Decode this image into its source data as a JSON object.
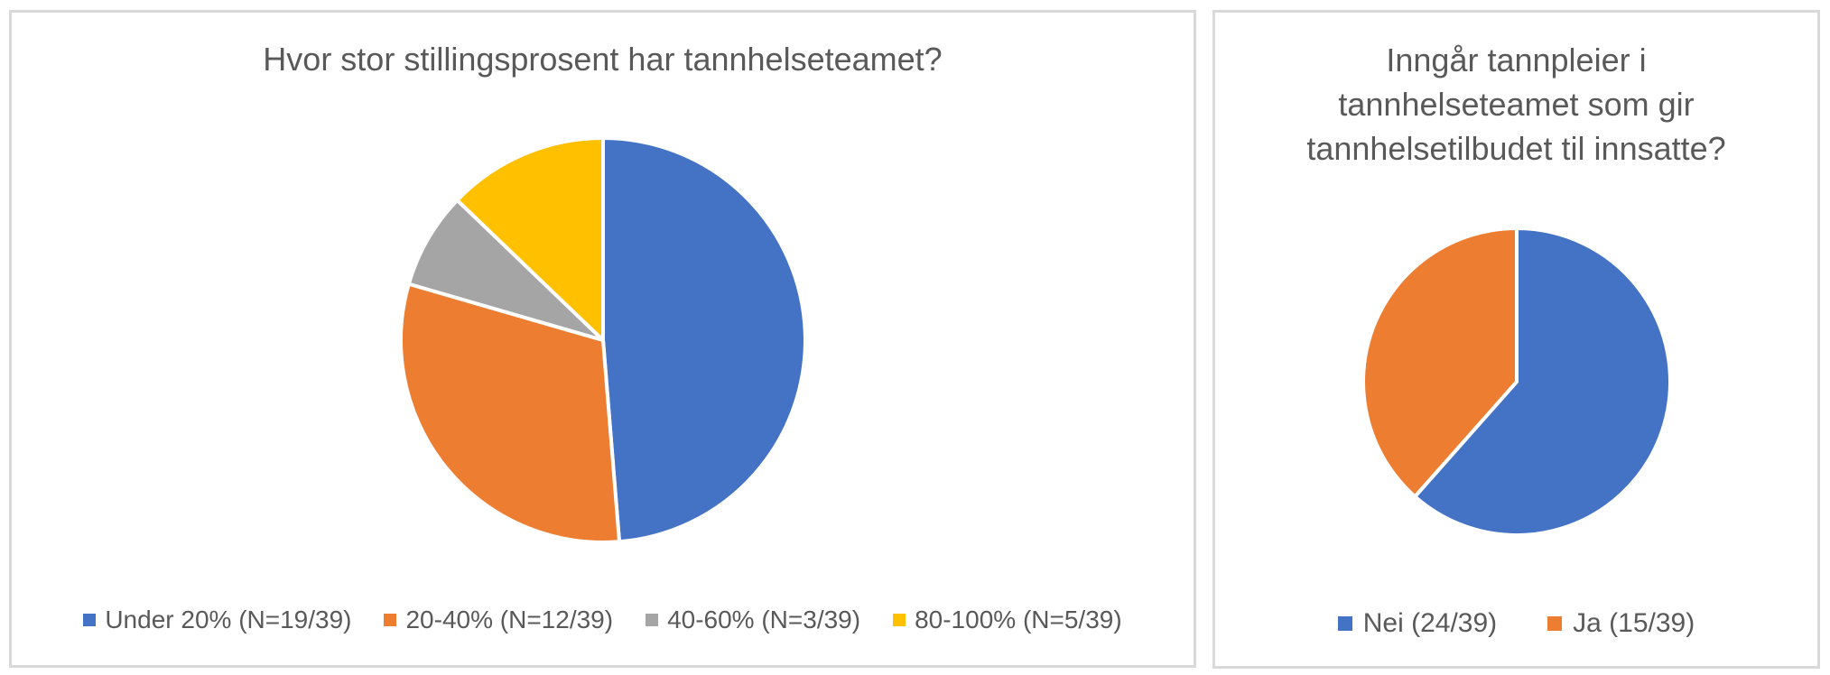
{
  "styles": {
    "background": "#FFFFFF",
    "panel_border_color": "#D9D9D9",
    "title_color": "#595959",
    "legend_text_color": "#595959",
    "slice_separator_color": "#FFFFFF"
  },
  "chart_data": [
    {
      "type": "pie",
      "title": "Hvor stor stillingsprosent har tannhelseteamet?",
      "categories": [
        "Under 20%",
        "20-40%",
        "40-60%",
        "80-100%"
      ],
      "values": [
        19,
        12,
        3,
        5
      ],
      "denominator": 39,
      "legend_labels": [
        "Under 20% (N=19/39)",
        "20-40% (N=12/39)",
        "40-60% (N=3/39)",
        "80-100% (N=5/39)"
      ],
      "colors": [
        "#4472C4",
        "#ED7D31",
        "#A5A5A5",
        "#FFC000"
      ],
      "legend_position": "bottom",
      "start_angle_deg": 0,
      "direction": "clockwise"
    },
    {
      "type": "pie",
      "title": "Inngår tannpleier i tannhelseteamet som gir tannhelsetilbudet til innsatte?",
      "title_lines": [
        "Inngår tannpleier i",
        "tannhelseteamet som gir",
        "tannhelsetilbudet til innsatte?"
      ],
      "categories": [
        "Nei",
        "Ja"
      ],
      "values": [
        24,
        15
      ],
      "denominator": 39,
      "legend_labels": [
        "Nei (24/39)",
        "Ja (15/39)"
      ],
      "colors": [
        "#4472C4",
        "#ED7D31"
      ],
      "legend_position": "bottom",
      "start_angle_deg": 0,
      "direction": "clockwise"
    }
  ]
}
